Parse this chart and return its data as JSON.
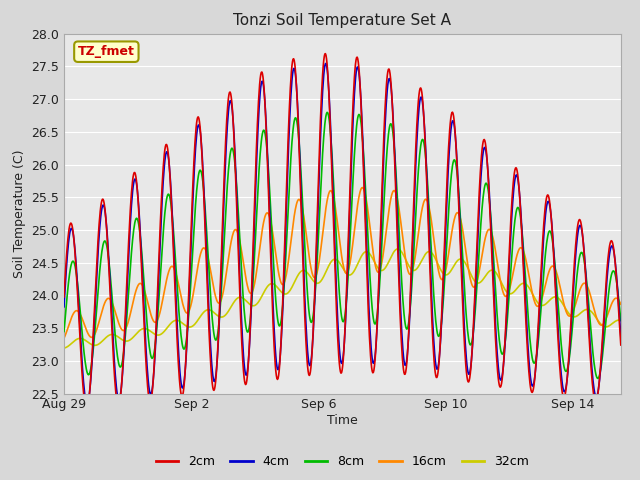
{
  "title": "Tonzi Soil Temperature Set A",
  "xlabel": "Time",
  "ylabel": "Soil Temperature (C)",
  "ylim": [
    22.5,
    28.0
  ],
  "yticks": [
    22.5,
    23.0,
    23.5,
    24.0,
    24.5,
    25.0,
    25.5,
    26.0,
    26.5,
    27.0,
    27.5,
    28.0
  ],
  "xtick_labels": [
    "Aug 29",
    "Sep 2",
    "Sep 6",
    "Sep 10",
    "Sep 14"
  ],
  "xtick_positions": [
    0,
    4,
    8,
    12,
    16
  ],
  "xlim": [
    0,
    17.5
  ],
  "plot_bg_color": "#e8e8e8",
  "fig_bg_color": "#d8d8d8",
  "grid_color": "#ffffff",
  "series_colors": {
    "2cm": "#dd0000",
    "4cm": "#0000cc",
    "8cm": "#00bb00",
    "16cm": "#ff8800",
    "32cm": "#cccc00"
  },
  "legend_label": "TZ_fmet",
  "legend_box_facecolor": "#ffffcc",
  "legend_box_edgecolor": "#999900"
}
